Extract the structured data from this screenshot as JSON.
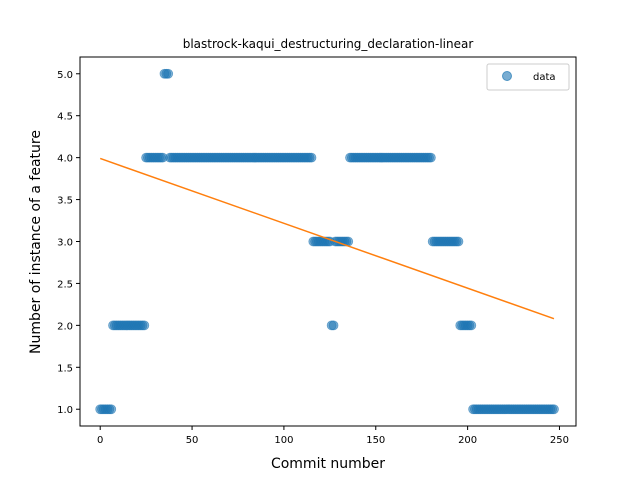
{
  "chart_data": {
    "type": "scatter",
    "title": "blastrock-kaqui_destructuring_declaration-linear",
    "xlabel": "Commit number",
    "ylabel": "Number of instance of a feature",
    "xlim": [
      -11,
      259
    ],
    "ylim": [
      0.8,
      5.2
    ],
    "xticks": [
      0,
      50,
      100,
      150,
      200,
      250
    ],
    "yticks": [
      1.0,
      1.5,
      2.0,
      2.5,
      3.0,
      3.5,
      4.0,
      4.5,
      5.0
    ],
    "xtick_labels": [
      "0",
      "50",
      "100",
      "150",
      "200",
      "250"
    ],
    "ytick_labels": [
      "1.0",
      "1.5",
      "2.0",
      "2.5",
      "3.0",
      "3.5",
      "4.0",
      "4.5",
      "5.0"
    ],
    "legend": {
      "position": "top-right",
      "entries": [
        "data"
      ]
    },
    "colors": {
      "points": "#1f77b4",
      "fit": "#ff7f0e"
    },
    "series": [
      {
        "name": "data",
        "kind": "points",
        "segments": [
          {
            "x_start": 0,
            "x_end": 7,
            "y": 1
          },
          {
            "x_start": 7,
            "x_end": 25,
            "y": 2
          },
          {
            "x_start": 25,
            "x_end": 35,
            "y": 4
          },
          {
            "x_start": 35,
            "x_end": 38,
            "y": 5
          },
          {
            "x_start": 38,
            "x_end": 116,
            "y": 4
          },
          {
            "x_start": 116,
            "x_end": 126,
            "y": 3
          },
          {
            "x_start": 126,
            "x_end": 128,
            "y": 2
          },
          {
            "x_start": 128,
            "x_end": 136,
            "y": 3
          },
          {
            "x_start": 136,
            "x_end": 181,
            "y": 4
          },
          {
            "x_start": 181,
            "x_end": 196,
            "y": 3
          },
          {
            "x_start": 196,
            "x_end": 203,
            "y": 2
          },
          {
            "x_start": 203,
            "x_end": 248,
            "y": 1
          }
        ]
      },
      {
        "kind": "fit-line",
        "x": [
          0,
          247
        ],
        "y": [
          3.99,
          2.08
        ]
      }
    ]
  }
}
